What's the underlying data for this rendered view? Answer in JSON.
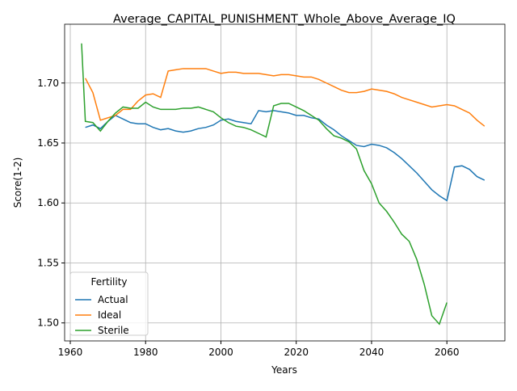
{
  "chart_data": {
    "type": "line",
    "title": "Average_CAPITAL_PUNISHMENT_Whole_Above_Average_IQ",
    "x_label": "Years",
    "y_label": "Score(1-2)",
    "legend_title": "Fertility",
    "legend_position": "lower left",
    "grid": true,
    "xlim": [
      1958.5,
      2075.4
    ],
    "ylim": [
      1.485,
      1.749
    ],
    "xticks": [
      1960,
      1980,
      2000,
      2020,
      2040,
      2060
    ],
    "yticks": [
      {
        "value": 1.5,
        "label": "1.50"
      },
      1.55,
      {
        "value": 1.6,
        "label": "1.60"
      },
      1.65,
      {
        "value": 1.7,
        "label": "1.70"
      }
    ],
    "x": [
      1963,
      1964,
      1966,
      1968,
      1970,
      1972,
      1974,
      1976,
      1978,
      1980,
      1982,
      1984,
      1986,
      1988,
      1990,
      1992,
      1994,
      1996,
      1998,
      2000,
      2002,
      2004,
      2006,
      2008,
      2010,
      2012,
      2014,
      2016,
      2018,
      2020,
      2022,
      2024,
      2026,
      2028,
      2030,
      2032,
      2034,
      2036,
      2038,
      2040,
      2042,
      2044,
      2046,
      2048,
      2050,
      2052,
      2054,
      2056,
      2058,
      2060,
      2062,
      2064,
      2066,
      2068,
      2070
    ],
    "series": [
      {
        "name": "Actual",
        "color": "#1f77b4",
        "values": [
          null,
          1.663,
          1.665,
          1.662,
          1.668,
          1.673,
          1.67,
          1.667,
          1.666,
          1.666,
          1.663,
          1.661,
          1.662,
          1.66,
          1.659,
          1.66,
          1.662,
          1.663,
          1.665,
          1.669,
          1.67,
          1.668,
          1.667,
          1.666,
          1.677,
          1.676,
          1.677,
          1.676,
          1.675,
          1.673,
          1.673,
          1.671,
          1.67,
          1.665,
          1.661,
          1.656,
          1.652,
          1.648,
          1.647,
          1.649,
          1.648,
          1.646,
          1.642,
          1.637,
          1.631,
          1.625,
          1.618,
          1.611,
          1.606,
          1.602,
          1.63,
          1.631,
          1.628,
          1.622,
          1.619
        ]
      },
      {
        "name": "Ideal",
        "color": "#ff7f0e",
        "values": [
          null,
          1.704,
          1.692,
          1.669,
          1.671,
          1.673,
          1.678,
          1.678,
          1.685,
          1.69,
          1.691,
          1.688,
          1.71,
          1.711,
          1.712,
          1.712,
          1.712,
          1.712,
          1.71,
          1.708,
          1.709,
          1.709,
          1.708,
          1.708,
          1.708,
          1.707,
          1.706,
          1.707,
          1.707,
          1.706,
          1.705,
          1.705,
          1.703,
          1.7,
          1.697,
          1.694,
          1.692,
          1.692,
          1.693,
          1.695,
          1.694,
          1.693,
          1.691,
          1.688,
          1.686,
          1.684,
          1.682,
          1.68,
          1.681,
          1.682,
          1.681,
          1.678,
          1.675,
          1.669,
          1.664
        ]
      },
      {
        "name": "Sterile",
        "color": "#2ca02c",
        "values": [
          1.733,
          1.668,
          1.667,
          1.66,
          1.668,
          1.675,
          1.68,
          1.679,
          1.679,
          1.684,
          1.68,
          1.678,
          1.678,
          1.678,
          1.679,
          1.679,
          1.68,
          1.678,
          1.676,
          1.671,
          1.667,
          1.664,
          1.663,
          1.661,
          1.658,
          1.655,
          1.681,
          1.683,
          1.683,
          1.68,
          1.677,
          1.673,
          1.669,
          1.662,
          1.656,
          1.654,
          1.651,
          1.645,
          1.627,
          1.616,
          1.6,
          1.593,
          1.584,
          1.574,
          1.568,
          1.553,
          1.532,
          1.506,
          1.499,
          1.517,
          null,
          null,
          null,
          null,
          null
        ]
      }
    ]
  }
}
